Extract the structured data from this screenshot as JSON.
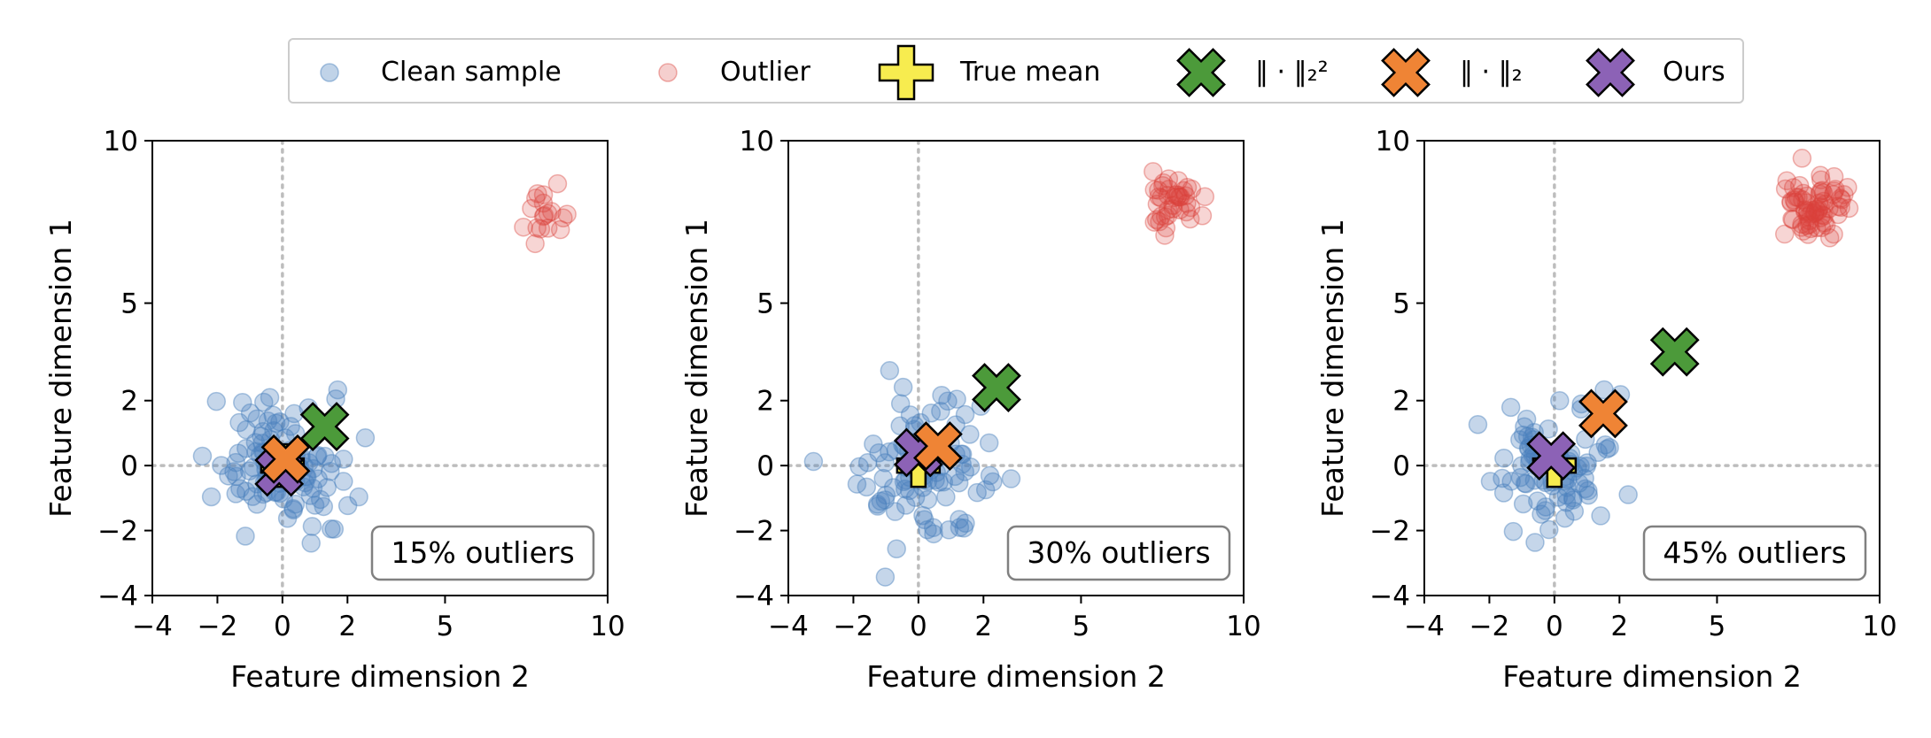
{
  "colors": {
    "clean": "#4a80bd",
    "outlier": "#d9403a",
    "true_mean": "#f7ec4f",
    "sq_l2": "#4c9a3a",
    "l2": "#ef8435",
    "ours": "#8c62b6",
    "ref_line": "#bdbdbd"
  },
  "legend": {
    "entries": [
      {
        "label": "Clean sample",
        "icon": "clean-circle-icon"
      },
      {
        "label": "Outlier",
        "icon": "outlier-circle-icon"
      },
      {
        "label": "True mean",
        "icon": "plus-marker-icon"
      },
      {
        "label": "‖ · ‖₂²",
        "icon": "green-x-marker-icon"
      },
      {
        "label": "‖ · ‖₂",
        "icon": "orange-x-marker-icon"
      },
      {
        "label": "Ours",
        "icon": "purple-x-marker-icon"
      }
    ]
  },
  "chart_data": [
    {
      "type": "scatter",
      "xlabel": "Feature dimension 2",
      "ylabel": "Feature dimension 1",
      "xlim": [
        -4,
        10
      ],
      "ylim": [
        -4,
        10
      ],
      "xticks": [
        "−4",
        "−2",
        "0",
        "2",
        "5",
        "10"
      ],
      "xtick_values": [
        -4,
        -2,
        0,
        2,
        5,
        10
      ],
      "yticks": [
        "−4",
        "−2",
        "0",
        "2",
        "5",
        "10"
      ],
      "ytick_values": [
        -4,
        -2,
        0,
        2,
        5,
        10
      ],
      "annotation": "15% outliers",
      "outlier_fraction": 0.15,
      "true_mean": [
        0,
        0
      ],
      "estimates": {
        "sq_l2": [
          1.3,
          1.2
        ],
        "l2": [
          0.1,
          0.2
        ],
        "ours": [
          -0.1,
          -0.2
        ]
      },
      "outlier_center": [
        8.1,
        7.9
      ],
      "clean_count": 110,
      "outlier_count": 18
    },
    {
      "type": "scatter",
      "xlabel": "Feature dimension 2",
      "ylabel": "Feature dimension 1",
      "xlim": [
        -4,
        10
      ],
      "ylim": [
        -4,
        10
      ],
      "xticks": [
        "−4",
        "−2",
        "0",
        "2",
        "5",
        "10"
      ],
      "xtick_values": [
        -4,
        -2,
        0,
        2,
        5,
        10
      ],
      "yticks": [
        "−4",
        "−2",
        "0",
        "2",
        "5",
        "10"
      ],
      "ytick_values": [
        -4,
        -2,
        0,
        2,
        5,
        10
      ],
      "annotation": "30% outliers",
      "outlier_fraction": 0.3,
      "true_mean": [
        0,
        0
      ],
      "estimates": {
        "sq_l2": [
          2.4,
          2.4
        ],
        "l2": [
          0.6,
          0.6
        ],
        "ours": [
          0.0,
          0.4
        ]
      },
      "outlier_center": [
        7.9,
        8.1
      ],
      "clean_count": 100,
      "outlier_count": 40
    },
    {
      "type": "scatter",
      "xlabel": "Feature dimension 2",
      "ylabel": "Feature dimension 1",
      "xlim": [
        -4,
        10
      ],
      "ylim": [
        -4,
        10
      ],
      "xticks": [
        "−4",
        "−2",
        "0",
        "2",
        "5",
        "10"
      ],
      "xtick_values": [
        -4,
        -2,
        0,
        2,
        5,
        10
      ],
      "yticks": [
        "−4",
        "−2",
        "0",
        "2",
        "5",
        "10"
      ],
      "ytick_values": [
        -4,
        -2,
        0,
        2,
        5,
        10
      ],
      "annotation": "45% outliers",
      "outlier_fraction": 0.45,
      "true_mean": [
        0,
        0
      ],
      "estimates": {
        "sq_l2": [
          3.7,
          3.5
        ],
        "l2": [
          1.5,
          1.6
        ],
        "ours": [
          -0.1,
          0.3
        ]
      },
      "outlier_center": [
        8.0,
        8.0
      ],
      "clean_count": 90,
      "outlier_count": 70
    }
  ]
}
